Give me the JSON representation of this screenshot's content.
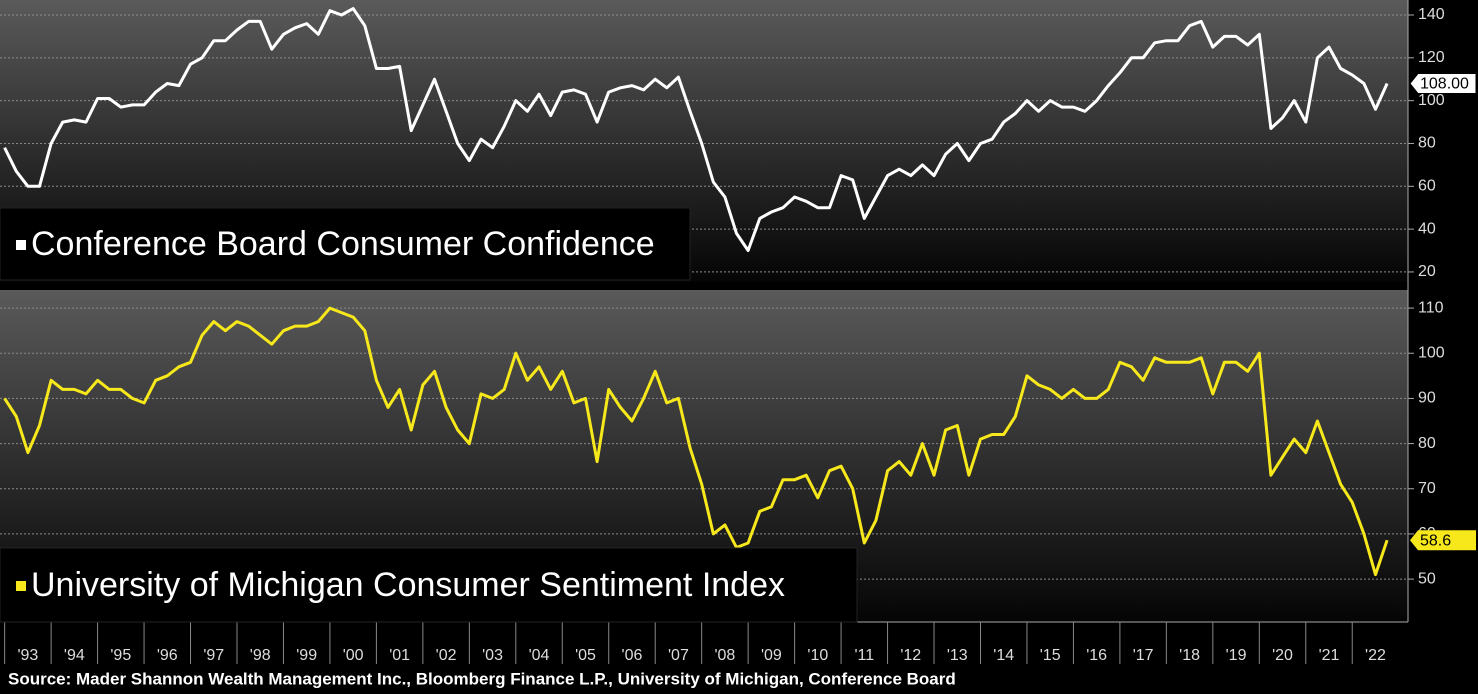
{
  "chart_data": [
    {
      "type": "line",
      "x": [
        1993,
        1993.25,
        1993.5,
        1993.75,
        1994,
        1994.25,
        1994.5,
        1994.75,
        1995,
        1995.25,
        1995.5,
        1995.75,
        1996,
        1996.25,
        1996.5,
        1996.75,
        1997,
        1997.25,
        1997.5,
        1997.75,
        1998,
        1998.25,
        1998.5,
        1998.75,
        1999,
        1999.25,
        1999.5,
        1999.75,
        2000,
        2000.25,
        2000.5,
        2000.75,
        2001,
        2001.25,
        2001.5,
        2001.75,
        2002,
        2002.25,
        2002.5,
        2002.75,
        2003,
        2003.25,
        2003.5,
        2003.75,
        2004,
        2004.25,
        2004.5,
        2004.75,
        2005,
        2005.25,
        2005.5,
        2005.75,
        2006,
        2006.25,
        2006.5,
        2006.75,
        2007,
        2007.25,
        2007.5,
        2007.75,
        2008,
        2008.25,
        2008.5,
        2008.75,
        2009,
        2009.25,
        2009.5,
        2009.75,
        2010,
        2010.25,
        2010.5,
        2010.75,
        2011,
        2011.25,
        2011.5,
        2011.75,
        2012,
        2012.25,
        2012.5,
        2012.75,
        2013,
        2013.25,
        2013.5,
        2013.75,
        2014,
        2014.25,
        2014.5,
        2014.75,
        2015,
        2015.25,
        2015.5,
        2015.75,
        2016,
        2016.25,
        2016.5,
        2016.75,
        2017,
        2017.25,
        2017.5,
        2017.75,
        2018,
        2018.25,
        2018.5,
        2018.75,
        2019,
        2019.25,
        2019.5,
        2019.75,
        2020,
        2020.25,
        2020.5,
        2020.75,
        2021,
        2021.25,
        2021.5,
        2021.75,
        2022,
        2022.25,
        2022.5,
        2022.75
      ],
      "series": [
        {
          "name": "Conference Board Consumer Confidence",
          "color": "#ffffff",
          "values": [
            78,
            67,
            60,
            60,
            80,
            90,
            91,
            90,
            101,
            101,
            97,
            98,
            98,
            104,
            108,
            107,
            117,
            120,
            128,
            128,
            133,
            137,
            137,
            124,
            131,
            134,
            136,
            131,
            142,
            140,
            143,
            135,
            115,
            115,
            116,
            86,
            98,
            110,
            95,
            80,
            72,
            82,
            78,
            88,
            100,
            95,
            103,
            93,
            104,
            105,
            103,
            90,
            104,
            106,
            107,
            105,
            110,
            106,
            111,
            95,
            80,
            62,
            55,
            38,
            30,
            45,
            48,
            50,
            55,
            53,
            50,
            50,
            65,
            63,
            45,
            55,
            65,
            68,
            65,
            70,
            65,
            75,
            80,
            72,
            80,
            82,
            90,
            94,
            100,
            95,
            100,
            97,
            97,
            95,
            100,
            107,
            113,
            120,
            120,
            127,
            128,
            128,
            135,
            137,
            125,
            130,
            130,
            126,
            131,
            87,
            92,
            100,
            90,
            120,
            125,
            115,
            112,
            108,
            96,
            108
          ],
          "last_value_label": "108.00"
        }
      ],
      "xlim": [
        1992.9,
        2023.2
      ],
      "ylim": [
        15.3,
        147
      ],
      "yticks": [
        20,
        40,
        60,
        80,
        100,
        120,
        140
      ],
      "grid": true
    },
    {
      "type": "line",
      "x": [
        1993,
        1993.25,
        1993.5,
        1993.75,
        1994,
        1994.25,
        1994.5,
        1994.75,
        1995,
        1995.25,
        1995.5,
        1995.75,
        1996,
        1996.25,
        1996.5,
        1996.75,
        1997,
        1997.25,
        1997.5,
        1997.75,
        1998,
        1998.25,
        1998.5,
        1998.75,
        1999,
        1999.25,
        1999.5,
        1999.75,
        2000,
        2000.25,
        2000.5,
        2000.75,
        2001,
        2001.25,
        2001.5,
        2001.75,
        2002,
        2002.25,
        2002.5,
        2002.75,
        2003,
        2003.25,
        2003.5,
        2003.75,
        2004,
        2004.25,
        2004.5,
        2004.75,
        2005,
        2005.25,
        2005.5,
        2005.75,
        2006,
        2006.25,
        2006.5,
        2006.75,
        2007,
        2007.25,
        2007.5,
        2007.75,
        2008,
        2008.25,
        2008.5,
        2008.75,
        2009,
        2009.25,
        2009.5,
        2009.75,
        2010,
        2010.25,
        2010.5,
        2010.75,
        2011,
        2011.25,
        2011.5,
        2011.75,
        2012,
        2012.25,
        2012.5,
        2012.75,
        2013,
        2013.25,
        2013.5,
        2013.75,
        2014,
        2014.25,
        2014.5,
        2014.75,
        2015,
        2015.25,
        2015.5,
        2015.75,
        2016,
        2016.25,
        2016.5,
        2016.75,
        2017,
        2017.25,
        2017.5,
        2017.75,
        2018,
        2018.25,
        2018.5,
        2018.75,
        2019,
        2019.25,
        2019.5,
        2019.75,
        2020,
        2020.25,
        2020.5,
        2020.75,
        2021,
        2021.25,
        2021.5,
        2021.75,
        2022,
        2022.25,
        2022.5,
        2022.75
      ],
      "series": [
        {
          "name": "University of Michigan Consumer Sentiment Index",
          "color": "#f7e81c",
          "values": [
            90,
            86,
            78,
            84,
            94,
            92,
            92,
            91,
            94,
            92,
            92,
            90,
            89,
            94,
            95,
            97,
            98,
            104,
            107,
            105,
            107,
            106,
            104,
            102,
            105,
            106,
            106,
            107,
            110,
            109,
            108,
            105,
            94,
            88,
            92,
            83,
            93,
            96,
            88,
            83,
            80,
            91,
            90,
            92,
            100,
            94,
            97,
            92,
            96,
            89,
            90,
            76,
            92,
            88,
            85,
            90,
            96,
            89,
            90,
            79,
            71,
            60,
            62,
            57,
            58,
            65,
            66,
            72,
            72,
            73,
            68,
            74,
            75,
            70,
            58,
            63,
            74,
            76,
            73,
            80,
            73,
            83,
            84,
            73,
            81,
            82,
            82,
            86,
            95,
            93,
            92,
            90,
            92,
            90,
            90,
            92,
            98,
            97,
            94,
            99,
            98,
            98,
            98,
            99,
            91,
            98,
            98,
            96,
            100,
            73,
            77,
            81,
            78,
            85,
            78,
            71,
            67,
            60,
            51,
            58.6
          ],
          "last_value_label": "58.6"
        }
      ],
      "xlim": [
        1992.9,
        2023.2
      ],
      "ylim": [
        40.5,
        114
      ],
      "yticks": [
        50,
        60,
        70,
        80,
        90,
        100,
        110
      ],
      "grid": true,
      "xticks": [
        {
          "value": 1993,
          "label": "'93"
        },
        {
          "value": 1994,
          "label": "'94"
        },
        {
          "value": 1995,
          "label": "'95"
        },
        {
          "value": 1996,
          "label": "'96"
        },
        {
          "value": 1997,
          "label": "'97"
        },
        {
          "value": 1998,
          "label": "'98"
        },
        {
          "value": 1999,
          "label": "'99"
        },
        {
          "value": 2000,
          "label": "'00"
        },
        {
          "value": 2001,
          "label": "'01"
        },
        {
          "value": 2002,
          "label": "'02"
        },
        {
          "value": 2003,
          "label": "'03"
        },
        {
          "value": 2004,
          "label": "'04"
        },
        {
          "value": 2005,
          "label": "'05"
        },
        {
          "value": 2006,
          "label": "'06"
        },
        {
          "value": 2007,
          "label": "'07"
        },
        {
          "value": 2008,
          "label": "'08"
        },
        {
          "value": 2009,
          "label": "'09"
        },
        {
          "value": 2010,
          "label": "'10"
        },
        {
          "value": 2011,
          "label": "'11"
        },
        {
          "value": 2012,
          "label": "'12"
        },
        {
          "value": 2013,
          "label": "'13"
        },
        {
          "value": 2014,
          "label": "'14"
        },
        {
          "value": 2015,
          "label": "'15"
        },
        {
          "value": 2016,
          "label": "'16"
        },
        {
          "value": 2017,
          "label": "'17"
        },
        {
          "value": 2018,
          "label": "'18"
        },
        {
          "value": 2019,
          "label": "'19"
        },
        {
          "value": 2020,
          "label": "'20"
        },
        {
          "value": 2021,
          "label": "'21"
        },
        {
          "value": 2022,
          "label": "'22"
        }
      ]
    }
  ],
  "source": "Source: Mader Shannon Wealth Management Inc., Bloomberg Finance L.P., University of Michigan, Conference Board"
}
